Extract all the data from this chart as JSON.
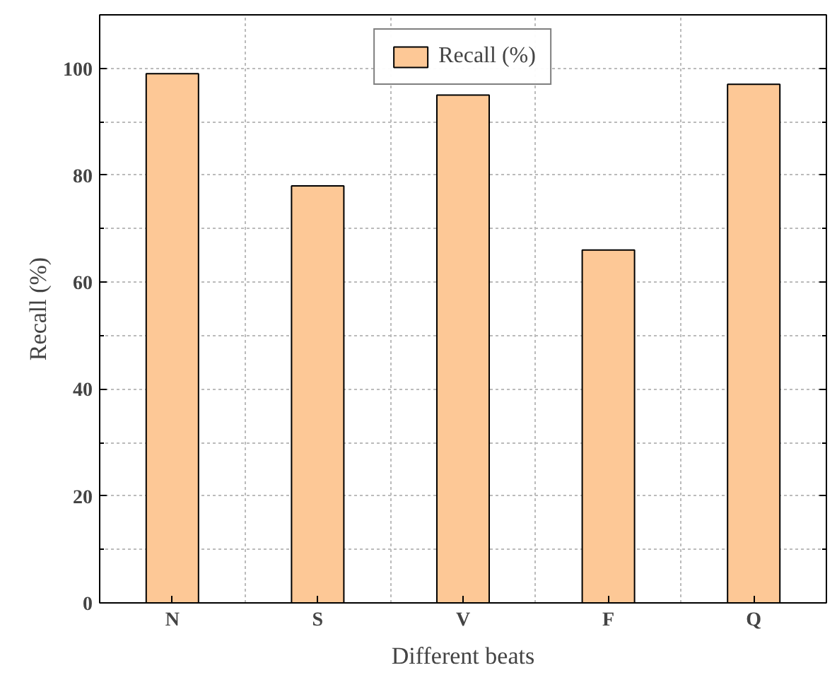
{
  "chart_data": {
    "type": "bar",
    "xlabel": "Different beats",
    "ylabel": "Recall (%)",
    "categories": [
      "N",
      "S",
      "V",
      "F",
      "Q"
    ],
    "series": [
      {
        "name": "Recall (%)",
        "color": "#fdc896",
        "values": [
          99,
          78,
          95,
          66,
          97
        ]
      }
    ],
    "ylim": [
      0,
      110
    ],
    "yticks": [
      0,
      20,
      40,
      60,
      80,
      100
    ],
    "grid": true,
    "legend": "top"
  }
}
